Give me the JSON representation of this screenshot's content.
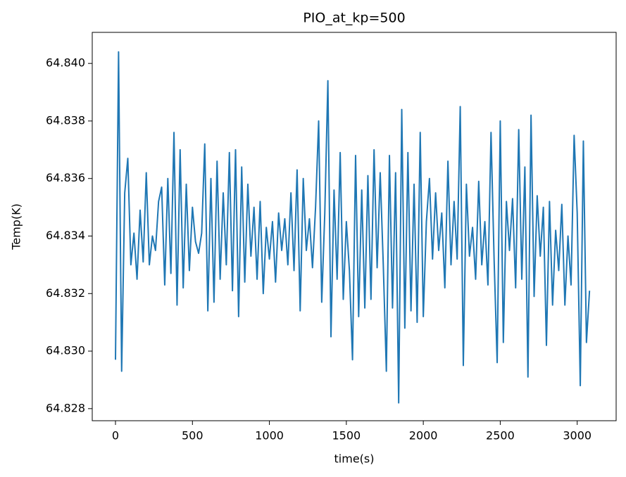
{
  "chart_data": {
    "type": "line",
    "title": "PIO_at_kp=500",
    "x_label": "time(s)",
    "y_label": "Temp(K)",
    "x": [
      0,
      20,
      40,
      60,
      80,
      100,
      120,
      140,
      160,
      180,
      200,
      220,
      240,
      260,
      280,
      300,
      320,
      340,
      360,
      380,
      400,
      420,
      440,
      460,
      480,
      500,
      520,
      540,
      560,
      580,
      600,
      620,
      640,
      660,
      680,
      700,
      720,
      740,
      760,
      780,
      800,
      820,
      840,
      860,
      880,
      900,
      920,
      940,
      960,
      980,
      1000,
      1020,
      1040,
      1060,
      1080,
      1100,
      1120,
      1140,
      1160,
      1180,
      1200,
      1220,
      1240,
      1260,
      1280,
      1300,
      1320,
      1340,
      1360,
      1380,
      1400,
      1420,
      1440,
      1460,
      1480,
      1500,
      1520,
      1540,
      1560,
      1580,
      1600,
      1620,
      1640,
      1660,
      1680,
      1700,
      1720,
      1740,
      1760,
      1780,
      1800,
      1820,
      1840,
      1860,
      1880,
      1900,
      1920,
      1940,
      1960,
      1980,
      2000,
      2020,
      2040,
      2060,
      2080,
      2100,
      2120,
      2140,
      2160,
      2180,
      2200,
      2220,
      2240,
      2260,
      2280,
      2300,
      2320,
      2340,
      2360,
      2380,
      2400,
      2420,
      2440,
      2460,
      2480,
      2500,
      2520,
      2540,
      2560,
      2580,
      2600,
      2620,
      2640,
      2660,
      2680,
      2700,
      2720,
      2740,
      2760,
      2780,
      2800,
      2820,
      2840,
      2860,
      2880,
      2900,
      2920,
      2940,
      2960,
      2980,
      3000,
      3020,
      3040,
      3060,
      3080
    ],
    "series": [
      {
        "color": "#1f77b4",
        "values": [
          64.8297,
          64.8404,
          64.8293,
          64.8355,
          64.8367,
          64.833,
          64.8341,
          64.8325,
          64.8349,
          64.8331,
          64.8362,
          64.833,
          64.834,
          64.8335,
          64.8352,
          64.8357,
          64.8323,
          64.836,
          64.8327,
          64.8376,
          64.8316,
          64.837,
          64.8322,
          64.8358,
          64.8328,
          64.835,
          64.8338,
          64.8334,
          64.8341,
          64.8372,
          64.8314,
          64.836,
          64.8317,
          64.8366,
          64.8325,
          64.8355,
          64.833,
          64.8369,
          64.8321,
          64.837,
          64.8312,
          64.8364,
          64.8324,
          64.8358,
          64.8333,
          64.835,
          64.8325,
          64.8352,
          64.832,
          64.8343,
          64.8332,
          64.8345,
          64.8324,
          64.8348,
          64.8335,
          64.8346,
          64.833,
          64.8355,
          64.8328,
          64.8363,
          64.8314,
          64.836,
          64.8335,
          64.8346,
          64.8329,
          64.835,
          64.838,
          64.8317,
          64.8348,
          64.8394,
          64.8305,
          64.8356,
          64.8325,
          64.8369,
          64.8318,
          64.8345,
          64.8328,
          64.8297,
          64.8368,
          64.8312,
          64.8356,
          64.8315,
          64.8361,
          64.8318,
          64.837,
          64.8329,
          64.8362,
          64.833,
          64.8293,
          64.8368,
          64.8315,
          64.8362,
          64.8282,
          64.8384,
          64.8308,
          64.8369,
          64.8314,
          64.8358,
          64.831,
          64.8376,
          64.8312,
          64.8345,
          64.836,
          64.8332,
          64.8355,
          64.8335,
          64.8348,
          64.8322,
          64.8366,
          64.833,
          64.8352,
          64.8332,
          64.8385,
          64.8295,
          64.8358,
          64.8333,
          64.8343,
          64.8325,
          64.8359,
          64.833,
          64.8345,
          64.8323,
          64.8376,
          64.8332,
          64.8296,
          64.838,
          64.8303,
          64.8352,
          64.8335,
          64.8353,
          64.8322,
          64.8377,
          64.8325,
          64.8364,
          64.8291,
          64.8382,
          64.8319,
          64.8354,
          64.8333,
          64.835,
          64.8302,
          64.8352,
          64.8316,
          64.8342,
          64.8328,
          64.8351,
          64.8316,
          64.834,
          64.8323,
          64.8375,
          64.8348,
          64.8288,
          64.8373,
          64.8303,
          64.8321
        ]
      }
    ],
    "xlim": [
      -151,
      3253
    ],
    "ylim": [
      64.82758,
      64.84108
    ],
    "xticks": [
      0,
      500,
      1000,
      1500,
      2000,
      2500,
      3000
    ],
    "yticks": [
      64.828,
      64.83,
      64.832,
      64.834,
      64.836,
      64.838,
      64.84
    ],
    "yticks_labels_note": null,
    "grid": false
  }
}
